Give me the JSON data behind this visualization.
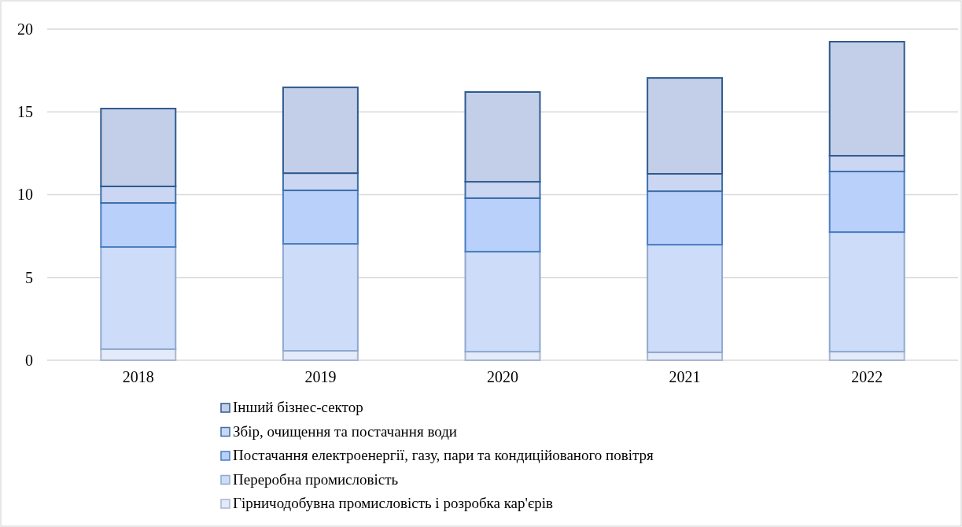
{
  "chart_data": {
    "type": "bar",
    "stacked": true,
    "categories": [
      "2018",
      "2019",
      "2020",
      "2021",
      "2022"
    ],
    "series": [
      {
        "name": "Гірничодобувна промисловість і розробка кар'єрів",
        "color": "#e3ebfa",
        "values": [
          0.67,
          0.57,
          0.52,
          0.48,
          0.52
        ]
      },
      {
        "name": "Переробна промисловість",
        "color": "#cddcf8",
        "values": [
          6.17,
          6.46,
          6.04,
          6.5,
          7.22
        ]
      },
      {
        "name": "Постачання електроенергії, газу, пари та кондиційованого повітря",
        "color": "#b9d0fa",
        "values": [
          2.66,
          3.23,
          3.23,
          3.23,
          3.66
        ]
      },
      {
        "name": "Збір, очищення та постачання води",
        "color": "#cbd7f2",
        "values": [
          1.0,
          1.04,
          0.99,
          1.05,
          0.95
        ]
      },
      {
        "name": "Інший бізнес-сектор",
        "color": "#c3cfe8",
        "values": [
          4.7,
          5.18,
          5.42,
          5.79,
          6.89
        ]
      }
    ],
    "ylim": [
      0,
      20
    ],
    "yticks": [
      0,
      5,
      10,
      15,
      20
    ],
    "grid": "y",
    "legend": "bottom"
  }
}
